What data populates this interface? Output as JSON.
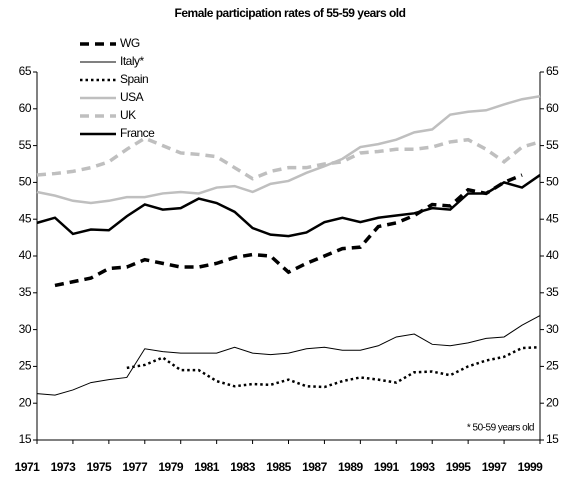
{
  "chart_data": {
    "type": "line",
    "title": "Female participation rates of 55-59 years old",
    "annotation": "* 50-59 years old",
    "x": [
      1971,
      1972,
      1973,
      1974,
      1975,
      1976,
      1977,
      1978,
      1979,
      1980,
      1981,
      1982,
      1983,
      1984,
      1985,
      1986,
      1987,
      1988,
      1989,
      1990,
      1991,
      1992,
      1993,
      1994,
      1995,
      1996,
      1997,
      1998,
      1999
    ],
    "xlim": [
      1971,
      1999
    ],
    "xticks": [
      1971,
      1973,
      1975,
      1977,
      1979,
      1981,
      1983,
      1985,
      1987,
      1989,
      1991,
      1993,
      1995,
      1997,
      1999
    ],
    "ylim": [
      15,
      65
    ],
    "yticks": [
      15,
      20,
      25,
      30,
      35,
      40,
      45,
      50,
      55,
      60,
      65
    ],
    "y2lim": [
      15,
      65
    ],
    "y2ticks": [
      15,
      20,
      25,
      30,
      35,
      40,
      45,
      50,
      55,
      60,
      65
    ],
    "legend": "top-left",
    "series": [
      {
        "name": "WG",
        "color": "#000000",
        "style": "dashed",
        "values": [
          null,
          36,
          36.5,
          37,
          38.3,
          38.5,
          39.5,
          39,
          38.5,
          38.5,
          39,
          39.8,
          40.2,
          40,
          37.8,
          39,
          40,
          41,
          41.2,
          44,
          44.5,
          45.5,
          47,
          46.8,
          49,
          48.5,
          50,
          51,
          null
        ]
      },
      {
        "name": "Italy*",
        "color": "#000000",
        "style": "thin",
        "values": [
          21.3,
          21.1,
          21.8,
          22.8,
          23.2,
          23.5,
          27.4,
          27,
          26.8,
          26.8,
          26.8,
          27.6,
          26.8,
          26.6,
          26.8,
          27.4,
          27.6,
          27.2,
          27.2,
          27.8,
          29,
          29.4,
          28,
          27.8,
          28.2,
          28.8,
          29,
          30.6,
          31.9
        ]
      },
      {
        "name": "Spain",
        "color": "#000000",
        "style": "dotted",
        "values": [
          null,
          null,
          null,
          null,
          null,
          24.8,
          25.2,
          26.2,
          24.5,
          24.5,
          23,
          22.3,
          22.6,
          22.5,
          23.2,
          22.3,
          22.2,
          23,
          23.5,
          23.2,
          22.8,
          24.2,
          24.3,
          23.8,
          25,
          25.8,
          26.3,
          27.5,
          27.6
        ]
      },
      {
        "name": "USA",
        "color": "#bfbfbf",
        "style": "solid",
        "values": [
          48.7,
          48.2,
          47.5,
          47.2,
          47.5,
          48,
          48,
          48.5,
          48.7,
          48.5,
          49.3,
          49.5,
          48.7,
          49.8,
          50.2,
          51.3,
          52.2,
          53.2,
          54.8,
          55.2,
          55.8,
          56.8,
          57.2,
          59.2,
          59.6,
          59.8,
          60.6,
          61.3,
          61.7
        ]
      },
      {
        "name": "UK",
        "color": "#bfbfbf",
        "style": "dashed",
        "values": [
          51,
          51.2,
          51.5,
          52,
          52.8,
          54.5,
          56,
          55,
          54,
          53.8,
          53.5,
          52,
          50.5,
          51.5,
          52,
          52,
          52.5,
          52.8,
          54,
          54.2,
          54.5,
          54.5,
          54.8,
          55.5,
          55.8,
          54.5,
          52.8,
          54.8,
          55.5
        ]
      },
      {
        "name": "France",
        "color": "#000000",
        "style": "thick",
        "values": [
          44.5,
          45.2,
          43,
          43.6,
          43.5,
          45.4,
          47,
          46.3,
          46.5,
          47.8,
          47.2,
          46,
          43.8,
          42.9,
          42.7,
          43.2,
          44.6,
          45.2,
          44.6,
          45.2,
          45.5,
          45.8,
          46.5,
          46.3,
          48.5,
          48.5,
          50,
          49.3,
          51
        ]
      }
    ]
  }
}
